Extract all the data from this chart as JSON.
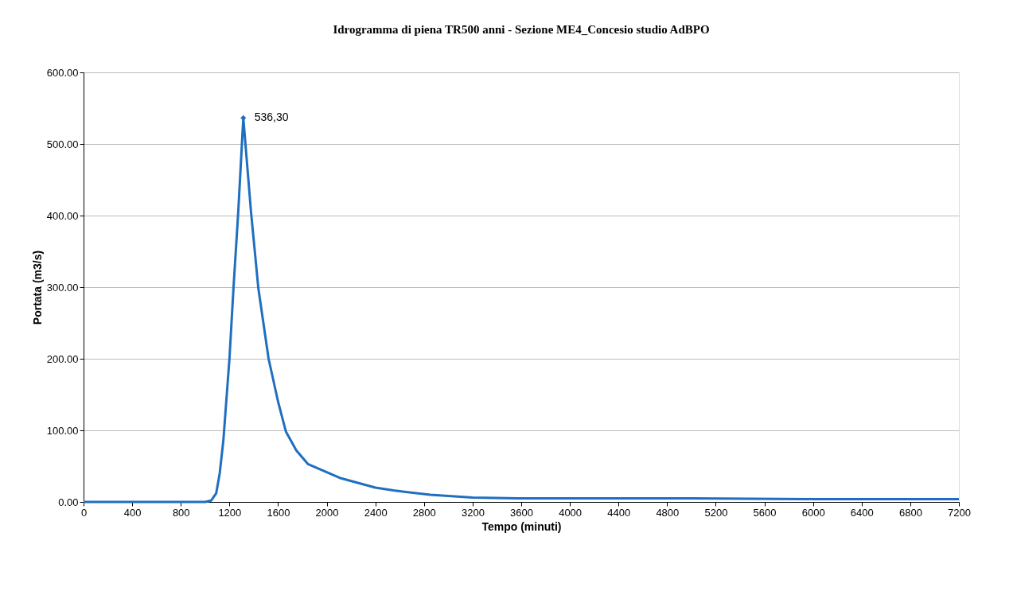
{
  "chart_data": {
    "type": "line",
    "title": "Idrogramma di piena TR500 anni - Sezione ME4_Concesio studio AdBPO",
    "xlabel": "Tempo (minuti)",
    "ylabel": "Portata (m3/s)",
    "series": [
      {
        "color": "#1f6fc1",
        "x": [
          0,
          1000,
          1050,
          1091,
          1120,
          1150,
          1200,
          1233,
          1272,
          1314,
          1378,
          1438,
          1522,
          1600,
          1665,
          1750,
          1845,
          2118,
          2400,
          2550,
          2853,
          3200,
          3570,
          4000,
          5000,
          6000,
          7200
        ],
        "values": [
          0,
          0,
          2,
          12,
          40,
          86,
          200,
          298,
          404,
          536.3,
          404,
          298,
          200,
          140,
          98,
          72,
          53,
          33,
          20,
          16,
          10,
          6,
          5,
          5,
          5,
          4,
          4
        ]
      }
    ],
    "annotations": [
      {
        "text": "536,30",
        "x": 1314,
        "y": 536.3
      }
    ],
    "xlim": [
      0,
      7200
    ],
    "xticks": [
      0,
      400,
      800,
      1200,
      1600,
      2000,
      2400,
      2800,
      3200,
      3600,
      4000,
      4400,
      4800,
      5200,
      5600,
      6000,
      6400,
      6800,
      7200
    ],
    "ylim": [
      0,
      600
    ],
    "yticks": [
      {
        "value": 0,
        "label": "0.00"
      },
      {
        "value": 100,
        "label": "100.00"
      },
      {
        "value": 200,
        "label": "200.00"
      },
      {
        "value": 300,
        "label": "300.00"
      },
      {
        "value": 400,
        "label": "400.00"
      },
      {
        "value": 500,
        "label": "500.00"
      },
      {
        "value": 600,
        "label": "600.00"
      }
    ],
    "grid": "y",
    "line_style": "solid"
  }
}
